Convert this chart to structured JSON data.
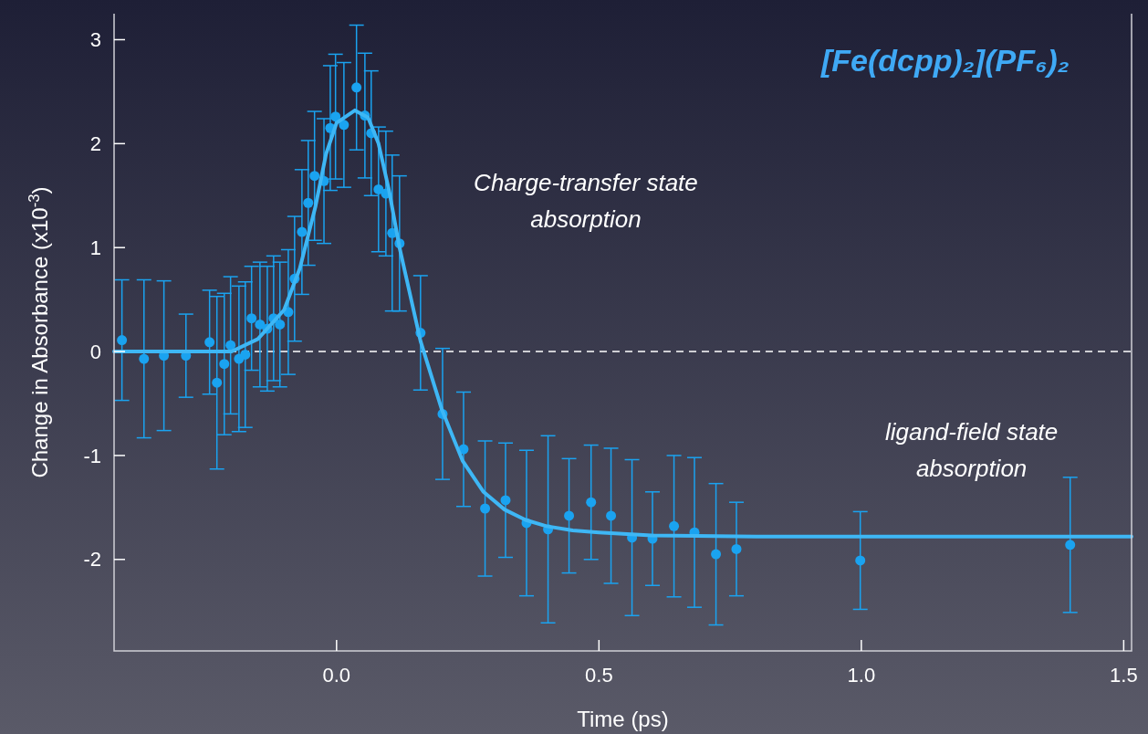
{
  "chart_data": {
    "type": "scatter",
    "title": "[Fe(dcpp)₂](PF₆)₂",
    "xlabel": "Time (ps)",
    "ylabel": "Change in Absorbance (x10$^{-3}$)",
    "annotations": [
      "Charge-transfer state absorption",
      "ligand-field state absorption"
    ],
    "xlim": [
      -0.424,
      1.515
    ],
    "ylim": [
      -2.88,
      3.25
    ],
    "xticks": [
      {
        "value": 0,
        "label": "0.0"
      },
      {
        "value": 0.5,
        "label": "0.5"
      },
      {
        "value": 1,
        "label": "1.0"
      },
      {
        "value": 1.5,
        "label": "1.5"
      }
    ],
    "yticks": [
      -2,
      -1,
      0,
      1,
      2,
      3
    ],
    "grid": false,
    "ref_lines": [
      {
        "axis": "y",
        "value": 0,
        "color": "#ffffff",
        "line_style": "dashed"
      }
    ],
    "series": [
      {
        "color": "#1aa3f0",
        "marker": "circle",
        "x": [
          -0.409,
          -0.367,
          -0.329,
          -0.287,
          -0.242,
          -0.228,
          -0.214,
          -0.202,
          -0.186,
          -0.174,
          -0.162,
          -0.146,
          -0.132,
          -0.12,
          -0.108,
          -0.092,
          -0.08,
          -0.066,
          -0.054,
          -0.042,
          -0.024,
          -0.012,
          -0.002,
          0.014,
          0.038,
          0.054,
          0.066,
          0.08,
          0.094,
          0.106,
          0.12,
          0.16,
          0.202,
          0.242,
          0.283,
          0.322,
          0.362,
          0.403,
          0.443,
          0.485,
          0.523,
          0.563,
          0.602,
          0.643,
          0.682,
          0.723,
          0.762,
          0.998,
          1.398
        ],
        "values": [
          0.11,
          -0.07,
          -0.04,
          -0.04,
          0.09,
          -0.3,
          -0.12,
          0.06,
          -0.07,
          -0.03,
          0.32,
          0.26,
          0.22,
          0.32,
          0.26,
          0.38,
          0.7,
          1.15,
          1.43,
          1.69,
          1.64,
          2.15,
          2.26,
          2.18,
          2.54,
          2.27,
          2.1,
          1.56,
          1.52,
          1.14,
          1.04,
          0.18,
          -0.6,
          -0.94,
          -1.51,
          -1.43,
          -1.65,
          -1.71,
          -1.58,
          -1.45,
          -1.58,
          -1.79,
          -1.8,
          -1.68,
          -1.74,
          -1.95,
          -1.9,
          -2.01,
          -1.86
        ],
        "errors": [
          0.58,
          0.76,
          0.72,
          0.4,
          0.5,
          0.83,
          0.68,
          0.66,
          0.7,
          0.7,
          0.5,
          0.6,
          0.6,
          0.6,
          0.6,
          0.6,
          0.6,
          0.6,
          0.6,
          0.62,
          0.6,
          0.6,
          0.6,
          0.6,
          0.6,
          0.6,
          0.6,
          0.6,
          0.6,
          0.75,
          0.65,
          0.55,
          0.63,
          0.55,
          0.65,
          0.55,
          0.7,
          0.9,
          0.55,
          0.55,
          0.65,
          0.75,
          0.45,
          0.68,
          0.72,
          0.68,
          0.45,
          0.47,
          0.65
        ]
      },
      {
        "type": "line",
        "color": "#3eb7f5",
        "marker": "none",
        "line_style": "solid",
        "x": [
          -0.424,
          -0.2,
          -0.15,
          -0.1,
          -0.07,
          -0.04,
          -0.02,
          0,
          0.035,
          0.06,
          0.08,
          0.1,
          0.12,
          0.16,
          0.2,
          0.24,
          0.28,
          0.32,
          0.36,
          0.4,
          0.45,
          0.5,
          0.6,
          0.8,
          1.515
        ],
        "values": [
          0,
          0,
          0.12,
          0.4,
          0.8,
          1.4,
          1.9,
          2.2,
          2.32,
          2.25,
          2.0,
          1.55,
          1.0,
          0.1,
          -0.55,
          -1.05,
          -1.35,
          -1.52,
          -1.62,
          -1.68,
          -1.72,
          -1.74,
          -1.77,
          -1.78,
          -1.78
        ]
      }
    ]
  }
}
